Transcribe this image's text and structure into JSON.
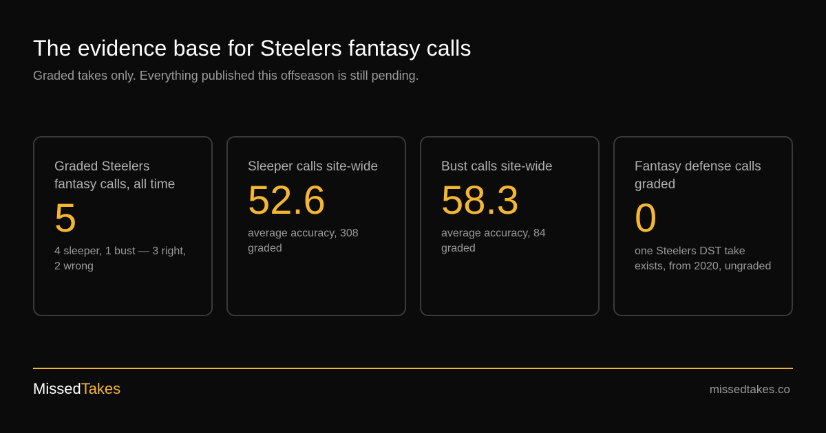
{
  "header": {
    "title": "The evidence base for Steelers fantasy calls",
    "subtitle": "Graded takes only. Everything published this offseason is still pending."
  },
  "cards": [
    {
      "label": "Graded Steelers fantasy calls, all time",
      "value": "5",
      "note": "4 sleeper, 1 bust — 3 right, 2 wrong"
    },
    {
      "label": "Sleeper calls site-wide",
      "value": "52.6",
      "note": "average accuracy, 308 graded"
    },
    {
      "label": "Bust calls site-wide",
      "value": "58.3",
      "note": "average accuracy, 84 graded"
    },
    {
      "label": "Fantasy defense calls graded",
      "value": "0",
      "note": "one Steelers DST take exists, from 2020, ungraded"
    }
  ],
  "footer": {
    "brand_part1": "Missed",
    "brand_part2": "Takes",
    "site": "missedtakes.co"
  },
  "colors": {
    "accent": "#f5b731",
    "background": "#0b0b0b",
    "card_border": "#3a3a3c"
  }
}
